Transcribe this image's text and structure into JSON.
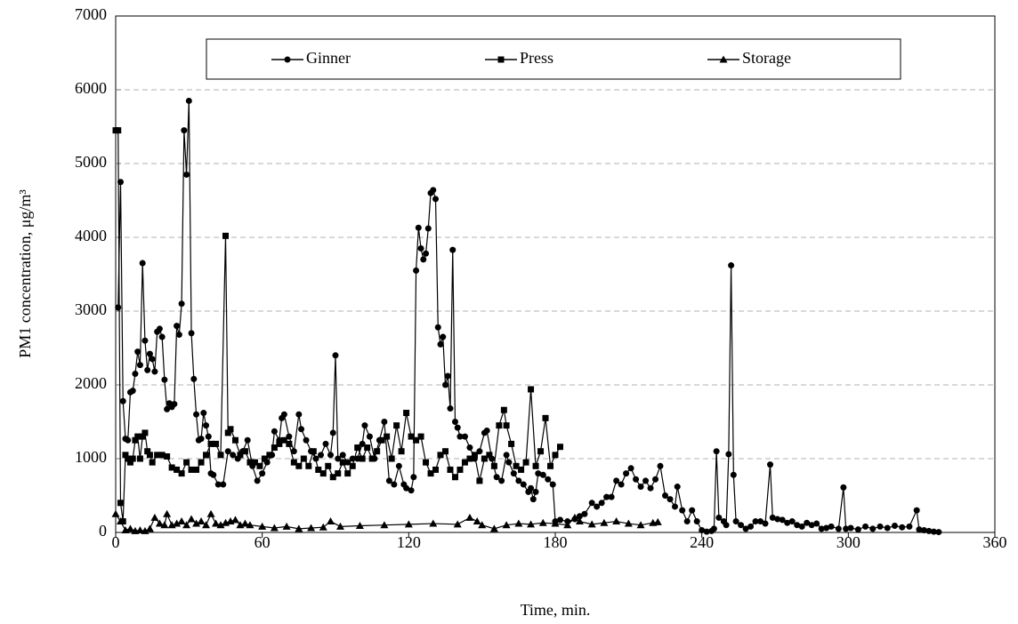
{
  "chart_data": {
    "type": "line",
    "xlabel": "Time, min.",
    "ylabel": "PM1 concentration, μg/m³",
    "xlim": [
      0,
      360
    ],
    "xticks": [
      0,
      60,
      120,
      180,
      240,
      300,
      360
    ],
    "ylim": [
      0,
      7000
    ],
    "yticks": [
      0,
      1000,
      2000,
      3000,
      4000,
      5000,
      6000,
      7000
    ],
    "grid": true,
    "series": [
      {
        "name": "Ginner",
        "color": "#000000",
        "marker": "circle",
        "x": [
          1,
          2,
          3,
          4,
          5,
          6,
          7,
          8,
          9,
          10,
          11,
          12,
          13,
          14,
          15,
          16,
          17,
          18,
          19,
          20,
          21,
          22,
          23,
          24,
          25,
          26,
          27,
          28,
          29,
          30,
          31,
          32,
          33,
          34,
          35,
          36,
          37,
          38,
          39,
          40,
          42,
          44,
          46,
          48,
          50,
          52,
          54,
          56,
          58,
          60,
          62,
          64,
          65,
          67,
          68,
          69,
          71,
          73,
          75,
          76,
          78,
          80,
          82,
          84,
          86,
          88,
          89,
          90,
          91,
          93,
          95,
          97,
          99,
          101,
          102,
          104,
          106,
          108,
          110,
          112,
          114,
          116,
          118,
          119,
          121,
          122,
          123,
          124,
          125,
          126,
          127,
          128,
          129,
          130,
          131,
          132,
          133,
          134,
          135,
          136,
          137,
          138,
          139,
          140,
          141,
          143,
          145,
          147,
          149,
          151,
          152,
          154,
          156,
          158,
          160,
          161,
          163,
          165,
          167,
          169,
          170,
          171,
          172,
          173,
          175,
          177,
          179,
          180,
          182,
          185,
          188,
          190,
          192,
          195,
          197,
          199,
          201,
          203,
          205,
          207,
          209,
          211,
          213,
          215,
          217,
          219,
          221,
          223,
          225,
          227,
          229,
          230,
          232,
          234,
          236,
          238,
          240,
          242,
          244,
          245,
          246,
          247,
          249,
          250,
          251,
          252,
          253,
          254,
          256,
          258,
          260,
          262,
          264,
          266,
          268,
          269,
          271,
          273,
          275,
          277,
          279,
          281,
          283,
          285,
          287,
          289,
          291,
          293,
          296,
          298,
          299,
          301,
          304,
          307,
          310,
          313,
          316,
          319,
          322,
          325,
          328,
          329,
          331,
          333,
          335,
          337
        ],
        "values": [
          3050,
          4750,
          1780,
          1270,
          1250,
          1900,
          1920,
          2150,
          2450,
          2270,
          3650,
          2600,
          2200,
          2420,
          2350,
          2180,
          2720,
          2760,
          2650,
          2070,
          1670,
          1750,
          1700,
          1740,
          2800,
          2680,
          3100,
          5450,
          4850,
          5850,
          2700,
          2080,
          1600,
          1250,
          1270,
          1620,
          1450,
          1300,
          800,
          780,
          650,
          650,
          1100,
          1050,
          1000,
          1100,
          1250,
          900,
          700,
          800,
          950,
          1050,
          1370,
          1250,
          1550,
          1600,
          1300,
          1100,
          1600,
          1400,
          1250,
          1100,
          1000,
          1050,
          1200,
          1050,
          1350,
          2400,
          1000,
          1050,
          950,
          1000,
          1000,
          1200,
          1450,
          1300,
          1000,
          1250,
          1500,
          700,
          650,
          900,
          650,
          600,
          570,
          750,
          3550,
          4130,
          3850,
          3700,
          3780,
          4120,
          4600,
          4640,
          4520,
          2780,
          2550,
          2650,
          2000,
          2120,
          1680,
          3830,
          1500,
          1420,
          1300,
          1300,
          1150,
          1000,
          1100,
          1350,
          1380,
          1000,
          750,
          700,
          1050,
          950,
          800,
          700,
          650,
          550,
          600,
          450,
          550,
          800,
          780,
          720,
          650,
          150,
          170,
          150,
          180,
          220,
          250,
          400,
          350,
          400,
          480,
          480,
          700,
          650,
          800,
          870,
          720,
          620,
          700,
          600,
          720,
          900,
          500,
          450,
          350,
          620,
          300,
          150,
          300,
          150,
          30,
          10,
          20,
          50,
          1100,
          200,
          150,
          100,
          1060,
          3620,
          780,
          150,
          100,
          50,
          80,
          150,
          150,
          120,
          920,
          200,
          180,
          170,
          130,
          150,
          100,
          80,
          130,
          100,
          120,
          50,
          60,
          80,
          50,
          610,
          50,
          60,
          40,
          80,
          50,
          80,
          60,
          90,
          70,
          80,
          300,
          40,
          30,
          20,
          10,
          5
        ]
      },
      {
        "name": "Press",
        "color": "#000000",
        "marker": "square",
        "x": [
          0,
          1,
          2,
          3,
          4,
          5,
          6,
          7,
          8,
          9,
          10,
          11,
          12,
          13,
          14,
          15,
          17,
          19,
          21,
          23,
          25,
          27,
          29,
          31,
          33,
          35,
          37,
          39,
          41,
          43,
          45,
          46,
          47,
          49,
          51,
          53,
          55,
          57,
          59,
          61,
          63,
          65,
          67,
          69,
          71,
          73,
          75,
          77,
          79,
          81,
          83,
          85,
          87,
          89,
          91,
          93,
          95,
          97,
          99,
          101,
          103,
          105,
          107,
          109,
          111,
          113,
          115,
          117,
          119,
          121,
          123,
          125,
          127,
          129,
          131,
          133,
          135,
          137,
          139,
          141,
          143,
          145,
          147,
          149,
          151,
          153,
          155,
          157,
          159,
          160,
          162,
          164,
          166,
          168,
          170,
          172,
          174,
          176,
          178,
          180,
          182
        ],
        "values": [
          5450,
          5450,
          400,
          150,
          1050,
          1000,
          950,
          1000,
          1250,
          1300,
          1000,
          1300,
          1350,
          1100,
          1050,
          950,
          1050,
          1050,
          1030,
          880,
          850,
          800,
          950,
          850,
          850,
          950,
          1050,
          1200,
          1200,
          1050,
          4020,
          1350,
          1400,
          1250,
          1050,
          1100,
          950,
          950,
          900,
          1000,
          1050,
          1150,
          1200,
          1250,
          1200,
          950,
          900,
          1000,
          900,
          1100,
          850,
          800,
          900,
          750,
          800,
          950,
          800,
          900,
          1150,
          1000,
          1150,
          1000,
          1100,
          1250,
          1300,
          1000,
          1450,
          1100,
          1620,
          1300,
          1250,
          1300,
          950,
          800,
          850,
          1050,
          1100,
          850,
          750,
          850,
          950,
          1000,
          1050,
          700,
          1000,
          1050,
          900,
          1450,
          1660,
          1450,
          1200,
          900,
          850,
          950,
          1940,
          900,
          1100,
          1550,
          900,
          1050,
          1160
        ]
      },
      {
        "name": "Storage",
        "color": "#000000",
        "marker": "triangle",
        "x": [
          0,
          2,
          4,
          6,
          8,
          10,
          12,
          14,
          16,
          18,
          20,
          21,
          23,
          25,
          27,
          29,
          31,
          33,
          35,
          37,
          39,
          41,
          43,
          45,
          47,
          49,
          51,
          53,
          55,
          60,
          65,
          70,
          75,
          80,
          85,
          88,
          92,
          100,
          110,
          120,
          130,
          140,
          145,
          148,
          150,
          155,
          160,
          165,
          170,
          175,
          180,
          185,
          188,
          190,
          195,
          200,
          205,
          210,
          215,
          220,
          222
        ],
        "values": [
          250,
          150,
          30,
          50,
          20,
          30,
          20,
          50,
          200,
          120,
          100,
          250,
          100,
          120,
          150,
          100,
          180,
          120,
          150,
          100,
          250,
          120,
          100,
          130,
          150,
          170,
          100,
          120,
          100,
          80,
          60,
          80,
          50,
          60,
          70,
          150,
          80,
          90,
          100,
          110,
          120,
          110,
          200,
          150,
          100,
          50,
          100,
          120,
          110,
          130,
          120,
          100,
          200,
          150,
          110,
          130,
          150,
          120,
          100,
          130,
          140
        ]
      }
    ]
  }
}
